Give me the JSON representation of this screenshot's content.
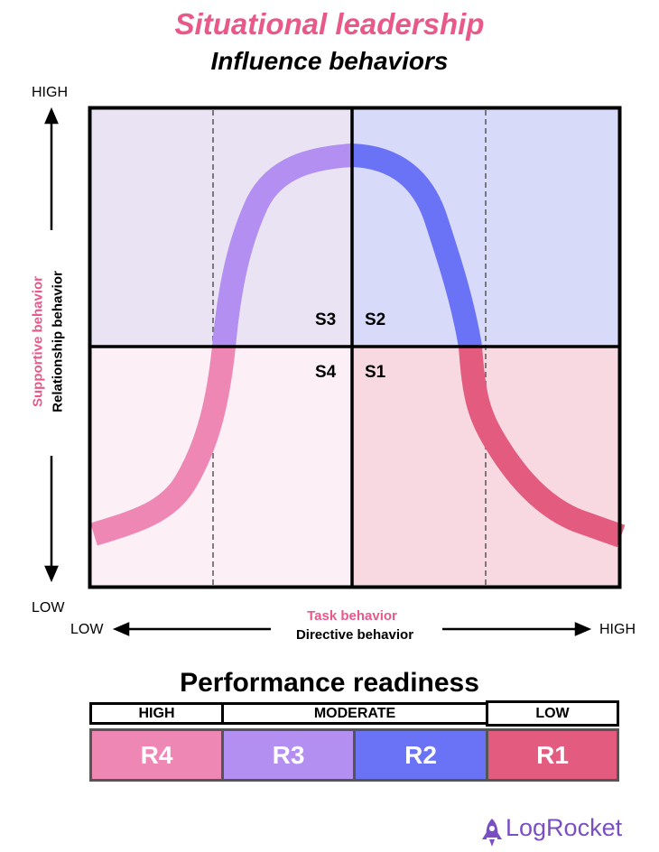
{
  "title": "Situational leadership",
  "subtitle": "Influence behaviors",
  "y_axis": {
    "high": "HIGH",
    "low": "LOW",
    "label_primary": "Supportive behavior",
    "label_secondary": "Relationship behavior"
  },
  "x_axis": {
    "low": "LOW",
    "high": "HIGH",
    "label_primary": "Task behavior",
    "label_secondary": "Directive behavior"
  },
  "quadrants": [
    {
      "label": "S3",
      "color": "#e9e3f3"
    },
    {
      "label": "S2",
      "color": "#d8dafa"
    },
    {
      "label": "S4",
      "color": "#fcf0f6"
    },
    {
      "label": "S1",
      "color": "#f8d9e2"
    }
  ],
  "curve_colors": {
    "s4": "#ef87b5",
    "s3": "#b38ff2",
    "s2": "#6a72f5",
    "s1": "#e35b7e"
  },
  "readiness": {
    "title": "Performance readiness",
    "groups": [
      "HIGH",
      "MODERATE",
      "LOW"
    ],
    "levels": [
      {
        "label": "R4",
        "color": "#ef87b5"
      },
      {
        "label": "R3",
        "color": "#b38ff2"
      },
      {
        "label": "R2",
        "color": "#6a72f5"
      },
      {
        "label": "R1",
        "color": "#e35b7e"
      }
    ]
  },
  "logo": "LogRocket"
}
